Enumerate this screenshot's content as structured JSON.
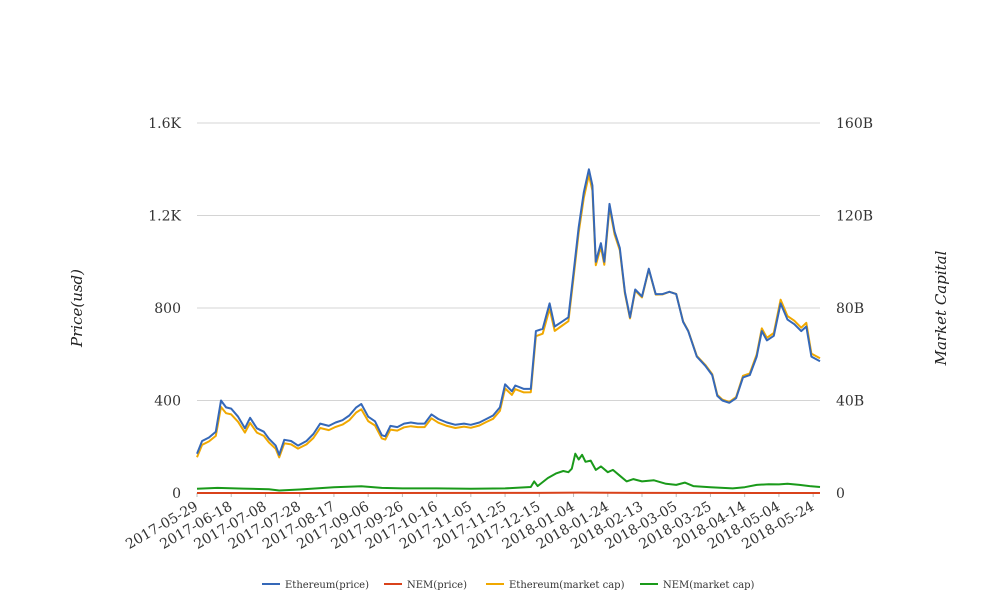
{
  "chart_data": {
    "type": "line",
    "title": "",
    "ylabel": "Price(usd)",
    "y2label": "Market Capital",
    "ylim": [
      0,
      1600
    ],
    "y2lim": [
      0,
      160
    ],
    "y2unit": "B (USD)",
    "grid": true,
    "legend_position": "bottom",
    "x_ticks": [
      "2017-05-29",
      "2017-06-18",
      "2017-07-08",
      "2017-07-28",
      "2017-08-17",
      "2017-09-06",
      "2017-09-26",
      "2017-10-16",
      "2017-11-05",
      "2017-11-25",
      "2017-12-15",
      "2018-01-04",
      "2018-01-24",
      "2018-02-13",
      "2018-03-05",
      "2018-03-25",
      "2018-04-14",
      "2018-05-04",
      "2018-05-24"
    ],
    "y_ticks": [
      "0",
      "400",
      "800",
      "1.2K",
      "1.6K"
    ],
    "y2_ticks": [
      "0",
      "40B",
      "80B",
      "120B",
      "160B"
    ],
    "x_start": "2017-05-29",
    "x_end": "2018-05-28",
    "series": [
      {
        "name": "Ethereum(price)",
        "axis": "left",
        "color": "#3568b8",
        "points": [
          [
            "2017-05-29",
            170
          ],
          [
            "2017-06-01",
            225
          ],
          [
            "2017-06-05",
            240
          ],
          [
            "2017-06-09",
            265
          ],
          [
            "2017-06-12",
            400
          ],
          [
            "2017-06-15",
            370
          ],
          [
            "2017-06-18",
            365
          ],
          [
            "2017-06-22",
            330
          ],
          [
            "2017-06-26",
            280
          ],
          [
            "2017-06-29",
            325
          ],
          [
            "2017-07-03",
            280
          ],
          [
            "2017-07-07",
            265
          ],
          [
            "2017-07-10",
            235
          ],
          [
            "2017-07-14",
            205
          ],
          [
            "2017-07-16",
            165
          ],
          [
            "2017-07-19",
            230
          ],
          [
            "2017-07-23",
            225
          ],
          [
            "2017-07-27",
            205
          ],
          [
            "2017-08-01",
            225
          ],
          [
            "2017-08-05",
            255
          ],
          [
            "2017-08-09",
            300
          ],
          [
            "2017-08-14",
            290
          ],
          [
            "2017-08-18",
            305
          ],
          [
            "2017-08-22",
            315
          ],
          [
            "2017-08-26",
            335
          ],
          [
            "2017-08-30",
            370
          ],
          [
            "2017-09-02",
            385
          ],
          [
            "2017-09-06",
            330
          ],
          [
            "2017-09-10",
            310
          ],
          [
            "2017-09-14",
            250
          ],
          [
            "2017-09-16",
            245
          ],
          [
            "2017-09-19",
            290
          ],
          [
            "2017-09-23",
            285
          ],
          [
            "2017-09-27",
            300
          ],
          [
            "2017-10-01",
            305
          ],
          [
            "2017-10-05",
            300
          ],
          [
            "2017-10-09",
            300
          ],
          [
            "2017-10-13",
            340
          ],
          [
            "2017-10-17",
            320
          ],
          [
            "2017-10-22",
            305
          ],
          [
            "2017-10-27",
            295
          ],
          [
            "2017-11-01",
            300
          ],
          [
            "2017-11-05",
            295
          ],
          [
            "2017-11-10",
            305
          ],
          [
            "2017-11-14",
            320
          ],
          [
            "2017-11-18",
            335
          ],
          [
            "2017-11-22",
            370
          ],
          [
            "2017-11-25",
            470
          ],
          [
            "2017-11-29",
            440
          ],
          [
            "2017-12-01",
            465
          ],
          [
            "2017-12-06",
            450
          ],
          [
            "2017-12-10",
            450
          ],
          [
            "2017-12-13",
            700
          ],
          [
            "2017-12-17",
            710
          ],
          [
            "2017-12-21",
            820
          ],
          [
            "2017-12-24",
            720
          ],
          [
            "2017-12-28",
            740
          ],
          [
            "2018-01-01",
            760
          ],
          [
            "2018-01-04",
            950
          ],
          [
            "2018-01-07",
            1150
          ],
          [
            "2018-01-10",
            1300
          ],
          [
            "2018-01-13",
            1400
          ],
          [
            "2018-01-15",
            1330
          ],
          [
            "2018-01-17",
            1000
          ],
          [
            "2018-01-20",
            1080
          ],
          [
            "2018-01-22",
            1000
          ],
          [
            "2018-01-25",
            1250
          ],
          [
            "2018-01-28",
            1130
          ],
          [
            "2018-01-31",
            1060
          ],
          [
            "2018-02-03",
            870
          ],
          [
            "2018-02-06",
            760
          ],
          [
            "2018-02-09",
            880
          ],
          [
            "2018-02-13",
            850
          ],
          [
            "2018-02-17",
            970
          ],
          [
            "2018-02-21",
            860
          ],
          [
            "2018-02-25",
            860
          ],
          [
            "2018-03-01",
            870
          ],
          [
            "2018-03-05",
            860
          ],
          [
            "2018-03-09",
            740
          ],
          [
            "2018-03-12",
            700
          ],
          [
            "2018-03-17",
            590
          ],
          [
            "2018-03-22",
            550
          ],
          [
            "2018-03-26",
            510
          ],
          [
            "2018-03-29",
            420
          ],
          [
            "2018-04-01",
            400
          ],
          [
            "2018-04-05",
            390
          ],
          [
            "2018-04-09",
            410
          ],
          [
            "2018-04-13",
            500
          ],
          [
            "2018-04-17",
            510
          ],
          [
            "2018-04-21",
            590
          ],
          [
            "2018-04-24",
            700
          ],
          [
            "2018-04-27",
            660
          ],
          [
            "2018-05-01",
            680
          ],
          [
            "2018-05-05",
            820
          ],
          [
            "2018-05-09",
            750
          ],
          [
            "2018-05-13",
            730
          ],
          [
            "2018-05-17",
            700
          ],
          [
            "2018-05-20",
            720
          ],
          [
            "2018-05-23",
            590
          ],
          [
            "2018-05-28",
            570
          ]
        ]
      },
      {
        "name": "NEM(price)",
        "axis": "left",
        "color": "#d9421b",
        "points": [
          [
            "2017-05-29",
            0.2
          ],
          [
            "2017-12-15",
            0.5
          ],
          [
            "2018-01-07",
            1.8
          ],
          [
            "2018-02-13",
            0.6
          ],
          [
            "2018-05-28",
            0.2
          ]
        ]
      },
      {
        "name": "Ethereum(market cap)",
        "axis": "right",
        "color": "#f0a800",
        "points": [
          [
            "2017-05-29",
            15.5
          ],
          [
            "2017-06-01",
            20.8
          ],
          [
            "2017-06-05",
            22.3
          ],
          [
            "2017-06-09",
            24.7
          ],
          [
            "2017-06-12",
            37.2
          ],
          [
            "2017-06-15",
            34.5
          ],
          [
            "2017-06-18",
            34.0
          ],
          [
            "2017-06-22",
            30.8
          ],
          [
            "2017-06-26",
            26.1
          ],
          [
            "2017-06-29",
            30.3
          ],
          [
            "2017-07-03",
            26.1
          ],
          [
            "2017-07-07",
            24.7
          ],
          [
            "2017-07-10",
            21.9
          ],
          [
            "2017-07-14",
            19.1
          ],
          [
            "2017-07-16",
            15.4
          ],
          [
            "2017-07-19",
            21.5
          ],
          [
            "2017-07-23",
            21.0
          ],
          [
            "2017-07-27",
            19.2
          ],
          [
            "2017-08-01",
            21.0
          ],
          [
            "2017-08-05",
            23.8
          ],
          [
            "2017-08-09",
            28.1
          ],
          [
            "2017-08-14",
            27.2
          ],
          [
            "2017-08-18",
            28.6
          ],
          [
            "2017-08-22",
            29.6
          ],
          [
            "2017-08-26",
            31.5
          ],
          [
            "2017-08-30",
            34.8
          ],
          [
            "2017-09-02",
            36.2
          ],
          [
            "2017-09-06",
            31.1
          ],
          [
            "2017-09-10",
            29.2
          ],
          [
            "2017-09-14",
            23.6
          ],
          [
            "2017-09-16",
            23.1
          ],
          [
            "2017-09-19",
            27.4
          ],
          [
            "2017-09-23",
            27.0
          ],
          [
            "2017-09-27",
            28.4
          ],
          [
            "2017-10-01",
            28.9
          ],
          [
            "2017-10-05",
            28.5
          ],
          [
            "2017-10-09",
            28.5
          ],
          [
            "2017-10-13",
            32.3
          ],
          [
            "2017-10-17",
            30.4
          ],
          [
            "2017-10-22",
            29.0
          ],
          [
            "2017-10-27",
            28.1
          ],
          [
            "2017-11-01",
            28.7
          ],
          [
            "2017-11-05",
            28.2
          ],
          [
            "2017-11-10",
            29.2
          ],
          [
            "2017-11-14",
            30.7
          ],
          [
            "2017-11-18",
            32.1
          ],
          [
            "2017-11-22",
            35.5
          ],
          [
            "2017-11-25",
            45.2
          ],
          [
            "2017-11-29",
            42.4
          ],
          [
            "2017-12-01",
            44.9
          ],
          [
            "2017-12-06",
            43.5
          ],
          [
            "2017-12-10",
            43.6
          ],
          [
            "2017-12-13",
            67.8
          ],
          [
            "2017-12-17",
            68.9
          ],
          [
            "2017-12-21",
            79.7
          ],
          [
            "2017-12-24",
            70.1
          ],
          [
            "2017-12-28",
            72.2
          ],
          [
            "2018-01-01",
            74.3
          ],
          [
            "2018-01-04",
            93.0
          ],
          [
            "2018-01-07",
            112.7
          ],
          [
            "2018-01-10",
            127.6
          ],
          [
            "2018-01-13",
            137.6
          ],
          [
            "2018-01-15",
            130.8
          ],
          [
            "2018-01-17",
            98.5
          ],
          [
            "2018-01-20",
            106.5
          ],
          [
            "2018-01-22",
            98.7
          ],
          [
            "2018-01-25",
            123.5
          ],
          [
            "2018-01-28",
            111.8
          ],
          [
            "2018-01-31",
            105.0
          ],
          [
            "2018-02-03",
            86.3
          ],
          [
            "2018-02-06",
            75.5
          ],
          [
            "2018-02-09",
            87.5
          ],
          [
            "2018-02-13",
            84.6
          ],
          [
            "2018-02-17",
            96.7
          ],
          [
            "2018-02-21",
            85.8
          ],
          [
            "2018-02-25",
            85.9
          ],
          [
            "2018-03-01",
            87.0
          ],
          [
            "2018-03-05",
            86.1
          ],
          [
            "2018-03-09",
            74.2
          ],
          [
            "2018-03-12",
            70.2
          ],
          [
            "2018-03-17",
            59.3
          ],
          [
            "2018-03-22",
            55.4
          ],
          [
            "2018-03-26",
            51.4
          ],
          [
            "2018-03-29",
            42.4
          ],
          [
            "2018-04-01",
            40.4
          ],
          [
            "2018-04-05",
            39.4
          ],
          [
            "2018-04-09",
            41.5
          ],
          [
            "2018-04-13",
            50.7
          ],
          [
            "2018-04-17",
            51.7
          ],
          [
            "2018-04-21",
            59.9
          ],
          [
            "2018-04-24",
            71.2
          ],
          [
            "2018-04-27",
            67.1
          ],
          [
            "2018-05-01",
            69.2
          ],
          [
            "2018-05-05",
            83.6
          ],
          [
            "2018-05-09",
            76.5
          ],
          [
            "2018-05-13",
            74.5
          ],
          [
            "2018-05-17",
            71.5
          ],
          [
            "2018-05-20",
            73.6
          ],
          [
            "2018-05-23",
            60.3
          ],
          [
            "2018-05-28",
            58.3
          ]
        ]
      },
      {
        "name": "NEM(market cap)",
        "axis": "right",
        "color": "#1a9a1a",
        "points": [
          [
            "2017-05-29",
            1.8
          ],
          [
            "2017-06-10",
            2.2
          ],
          [
            "2017-06-25",
            1.9
          ],
          [
            "2017-07-10",
            1.6
          ],
          [
            "2017-07-16",
            1.1
          ],
          [
            "2017-07-28",
            1.5
          ],
          [
            "2017-08-17",
            2.5
          ],
          [
            "2017-09-02",
            2.9
          ],
          [
            "2017-09-14",
            2.2
          ],
          [
            "2017-09-26",
            2.0
          ],
          [
            "2017-10-16",
            2.0
          ],
          [
            "2017-11-05",
            1.8
          ],
          [
            "2017-11-25",
            2.0
          ],
          [
            "2017-12-10",
            2.6
          ],
          [
            "2017-12-12",
            5.0
          ],
          [
            "2017-12-14",
            3.0
          ],
          [
            "2017-12-20",
            6.5
          ],
          [
            "2017-12-25",
            8.5
          ],
          [
            "2017-12-29",
            9.5
          ],
          [
            "2018-01-01",
            9.0
          ],
          [
            "2018-01-03",
            10.5
          ],
          [
            "2018-01-05",
            17.0
          ],
          [
            "2018-01-07",
            14.5
          ],
          [
            "2018-01-09",
            16.5
          ],
          [
            "2018-01-11",
            13.5
          ],
          [
            "2018-01-14",
            14.0
          ],
          [
            "2018-01-17",
            10.0
          ],
          [
            "2018-01-20",
            11.5
          ],
          [
            "2018-01-24",
            9.0
          ],
          [
            "2018-01-27",
            10.0
          ],
          [
            "2018-01-31",
            7.5
          ],
          [
            "2018-02-04",
            5.0
          ],
          [
            "2018-02-08",
            6.0
          ],
          [
            "2018-02-13",
            5.0
          ],
          [
            "2018-02-20",
            5.5
          ],
          [
            "2018-02-27",
            4.0
          ],
          [
            "2018-03-05",
            3.5
          ],
          [
            "2018-03-10",
            4.5
          ],
          [
            "2018-03-15",
            3.0
          ],
          [
            "2018-03-25",
            2.5
          ],
          [
            "2018-04-07",
            2.0
          ],
          [
            "2018-04-14",
            2.5
          ],
          [
            "2018-04-21",
            3.5
          ],
          [
            "2018-04-28",
            3.8
          ],
          [
            "2018-05-04",
            3.7
          ],
          [
            "2018-05-09",
            4.0
          ],
          [
            "2018-05-16",
            3.5
          ],
          [
            "2018-05-22",
            3.0
          ],
          [
            "2018-05-28",
            2.6
          ]
        ]
      }
    ]
  }
}
